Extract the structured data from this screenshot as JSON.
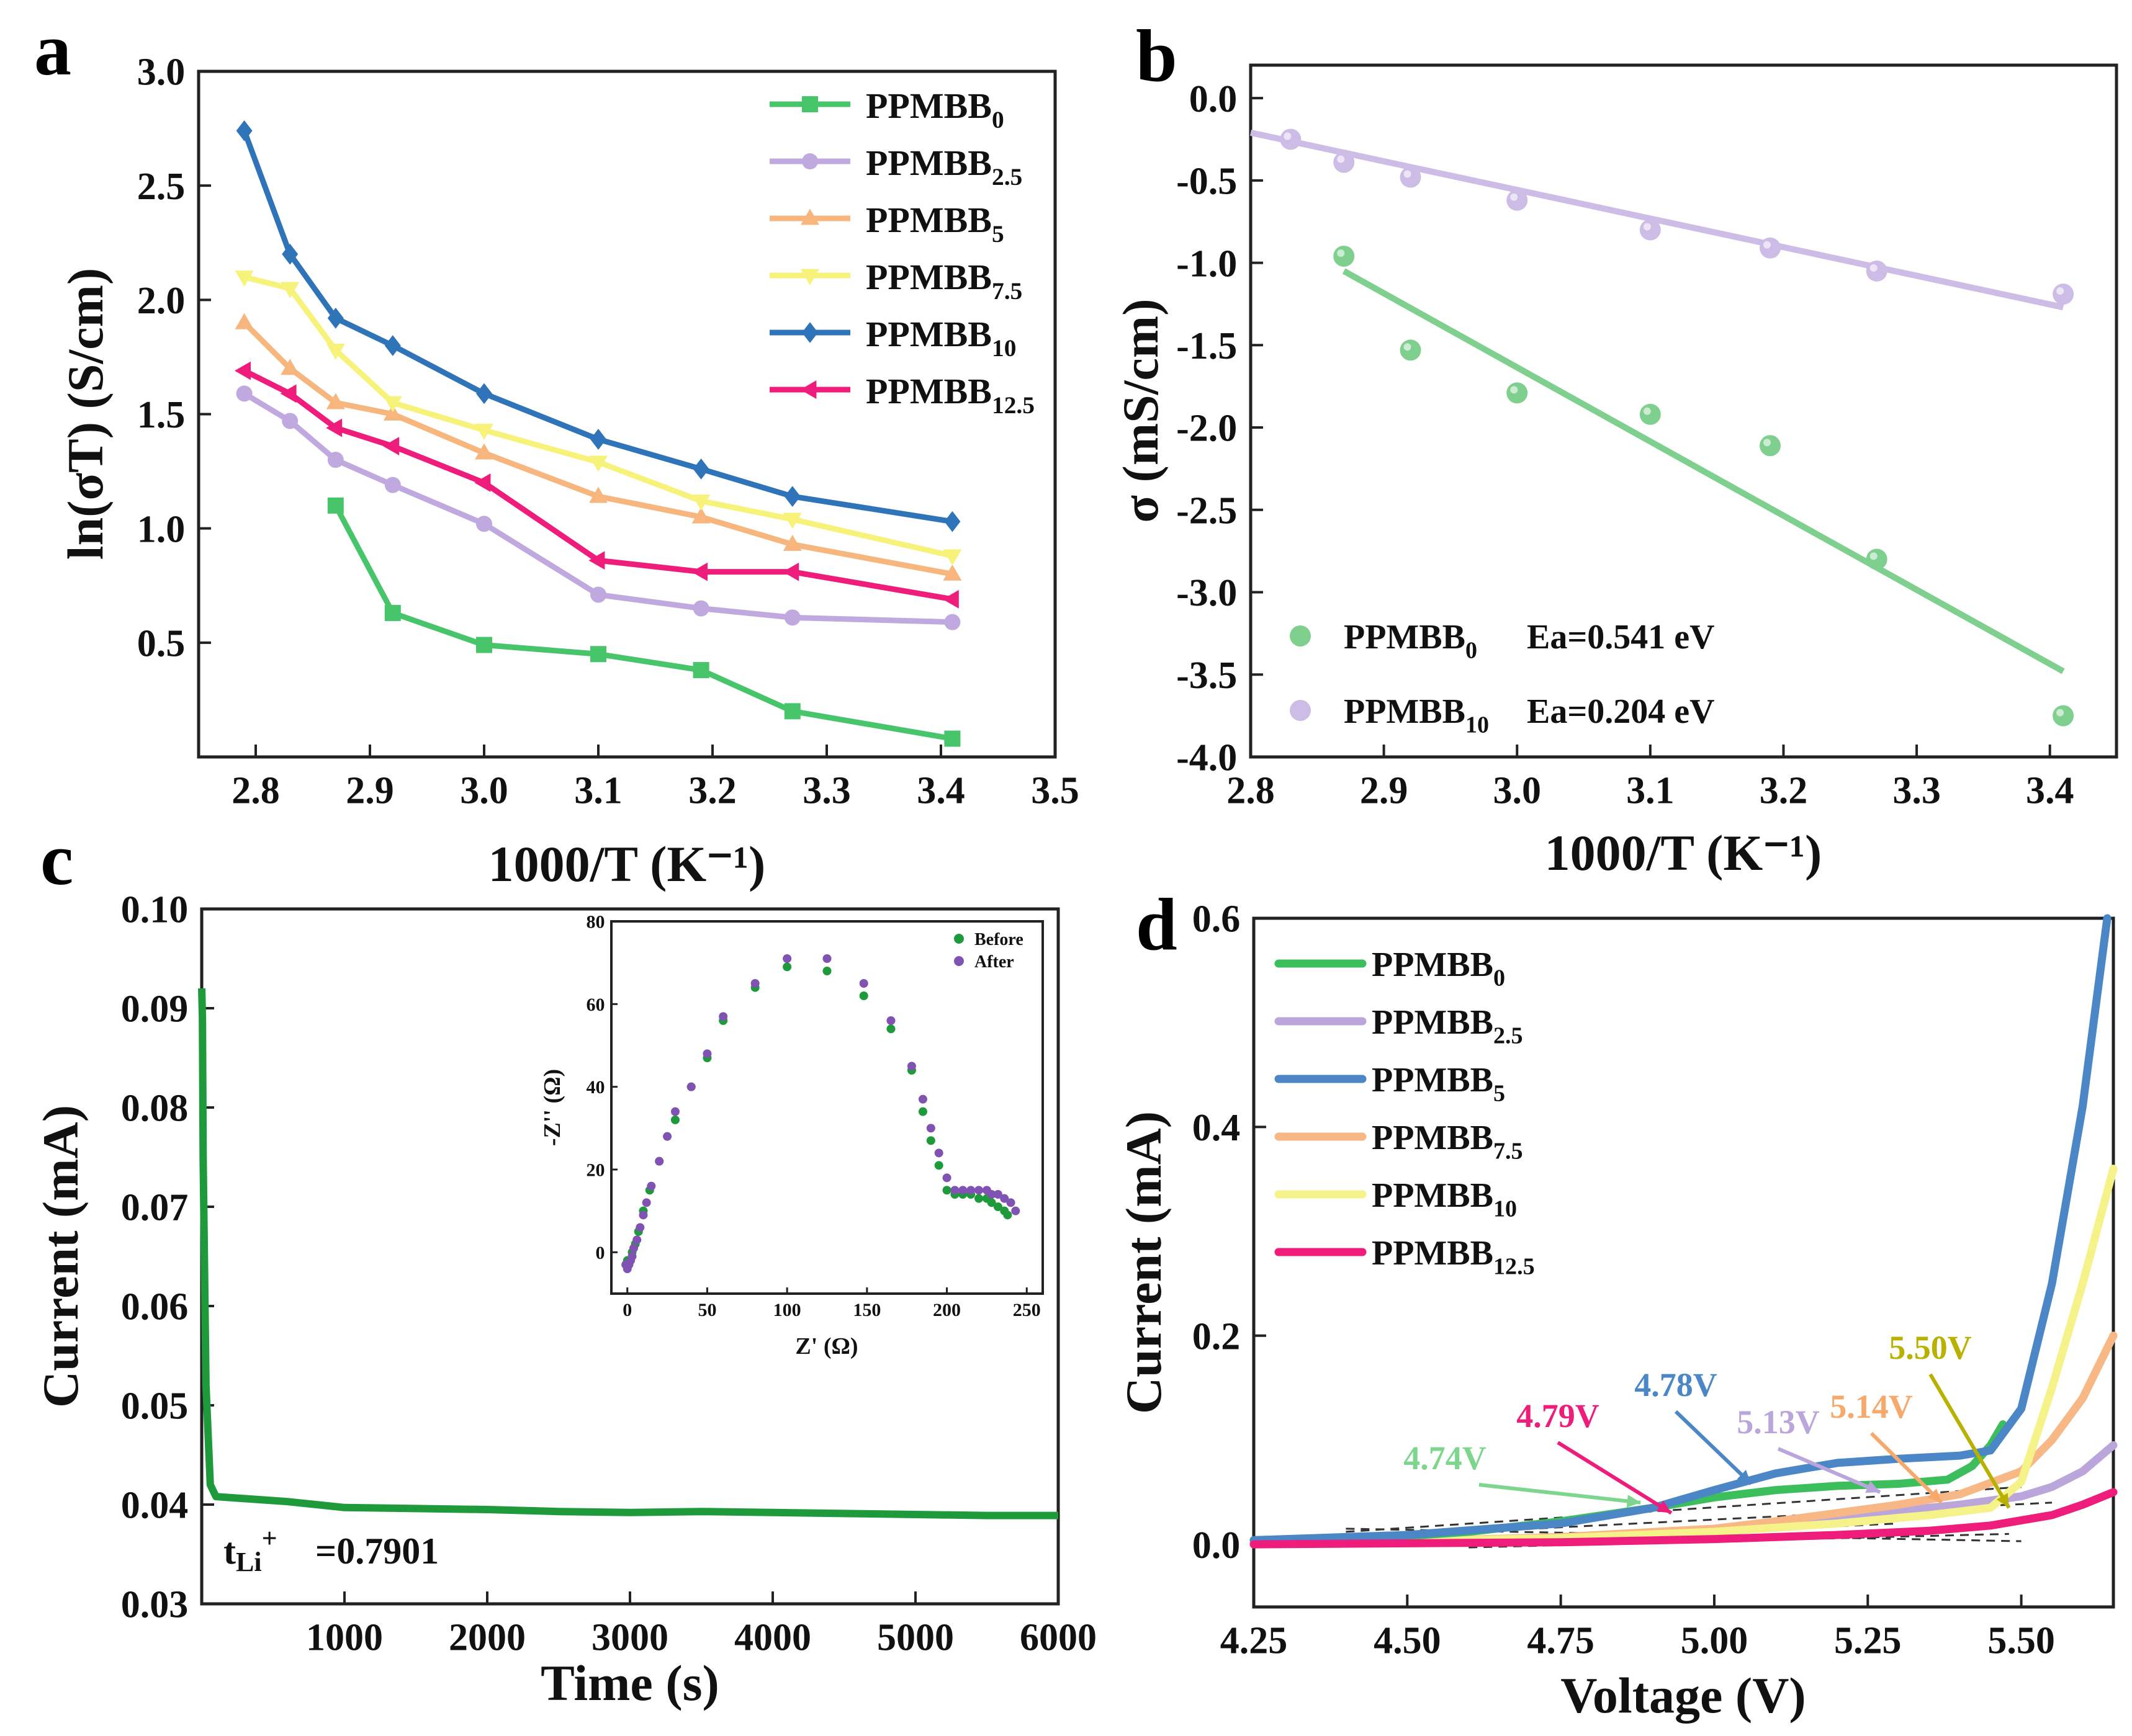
{
  "chart_data": [
    {
      "id": "a",
      "panel_label": "a",
      "type": "line",
      "xlabel": "1000/T (K⁻¹)",
      "ylabel": "ln(σT) (S/cm)",
      "xlim": [
        2.75,
        3.5
      ],
      "ylim": [
        0.0,
        3.0
      ],
      "xticks": [
        2.8,
        2.9,
        3.0,
        3.1,
        3.2,
        3.3,
        3.4,
        3.5
      ],
      "yticks": [
        0.5,
        1.0,
        1.5,
        2.0,
        2.5,
        3.0
      ],
      "legend": "top-right",
      "series": [
        {
          "name": "PPMBB",
          "sub": "0",
          "color": "#48C46A",
          "marker": "square",
          "x": [
            2.87,
            2.92,
            3.0,
            3.1,
            3.19,
            3.27,
            3.41
          ],
          "y": [
            1.1,
            0.63,
            0.49,
            0.45,
            0.38,
            0.2,
            0.08
          ]
        },
        {
          "name": "PPMBB",
          "sub": "2.5",
          "color": "#BFA9DE",
          "marker": "circle",
          "x": [
            2.79,
            2.83,
            2.87,
            2.92,
            3.0,
            3.1,
            3.19,
            3.27,
            3.41
          ],
          "y": [
            1.59,
            1.47,
            1.3,
            1.19,
            1.02,
            0.71,
            0.65,
            0.61,
            0.59
          ]
        },
        {
          "name": "PPMBB",
          "sub": "5",
          "color": "#F6B67D",
          "marker": "triangle-up",
          "x": [
            2.79,
            2.83,
            2.87,
            2.92,
            3.0,
            3.1,
            3.19,
            3.27,
            3.41
          ],
          "y": [
            1.9,
            1.7,
            1.55,
            1.5,
            1.33,
            1.14,
            1.05,
            0.93,
            0.8
          ]
        },
        {
          "name": "PPMBB",
          "sub": "7.5",
          "color": "#F7F27A",
          "marker": "triangle-down",
          "x": [
            2.79,
            2.83,
            2.87,
            2.92,
            3.0,
            3.1,
            3.19,
            3.27,
            3.41
          ],
          "y": [
            2.1,
            2.05,
            1.78,
            1.55,
            1.43,
            1.29,
            1.12,
            1.04,
            0.88
          ]
        },
        {
          "name": "PPMBB",
          "sub": "10",
          "color": "#2F73B8",
          "marker": "diamond",
          "x": [
            2.79,
            2.83,
            2.87,
            2.92,
            3.0,
            3.1,
            3.19,
            3.27,
            3.41
          ],
          "y": [
            2.74,
            2.2,
            1.92,
            1.8,
            1.59,
            1.39,
            1.26,
            1.14,
            1.03
          ]
        },
        {
          "name": "PPMBB",
          "sub": "12.5",
          "color": "#EE1C7A",
          "marker": "triangle-left",
          "x": [
            2.79,
            2.83,
            2.87,
            2.92,
            3.0,
            3.1,
            3.19,
            3.27,
            3.41
          ],
          "y": [
            1.69,
            1.59,
            1.44,
            1.36,
            1.2,
            0.86,
            0.81,
            0.81,
            0.69
          ]
        }
      ]
    },
    {
      "id": "b",
      "panel_label": "b",
      "type": "scatter",
      "xlabel": "1000/T (K⁻¹)",
      "ylabel": "σ (mS/cm)",
      "xlim": [
        2.8,
        3.45
      ],
      "ylim": [
        -4.0,
        0.2
      ],
      "xticks": [
        2.8,
        2.9,
        3.0,
        3.1,
        3.2,
        3.3,
        3.4
      ],
      "yticks": [
        0.0,
        -0.5,
        -1.0,
        -1.5,
        -2.0,
        -2.5,
        -3.0,
        -3.5,
        -4.0
      ],
      "ytick_labels": [
        "0.0",
        "-0.5",
        "-1.0",
        "-1.5",
        "-2.0",
        "-2.5",
        "-3.0",
        "-3.5",
        "-4.0"
      ],
      "legend": "bottom-left",
      "series": [
        {
          "name": "PPMBB",
          "sub": "0",
          "note": "Ea=0.541 eV",
          "color": "#7FD08F",
          "x": [
            2.87,
            2.92,
            3.0,
            3.1,
            3.19,
            3.27,
            3.41
          ],
          "y": [
            -0.96,
            -1.53,
            -1.79,
            -1.92,
            -2.11,
            -2.8,
            -3.75
          ],
          "fit": [
            [
              2.87,
              -1.05
            ],
            [
              3.41,
              -3.48
            ]
          ]
        },
        {
          "name": "PPMBB",
          "sub": "10",
          "note": "Ea=0.204 eV",
          "color": "#CDBDE6",
          "x": [
            2.83,
            2.87,
            2.92,
            3.0,
            3.1,
            3.19,
            3.27,
            3.41
          ],
          "y": [
            -0.25,
            -0.39,
            -0.48,
            -0.62,
            -0.8,
            -0.91,
            -1.05,
            -1.19
          ],
          "fit": [
            [
              2.8,
              -0.21
            ],
            [
              3.41,
              -1.27
            ]
          ]
        }
      ]
    },
    {
      "id": "c",
      "panel_label": "c",
      "type": "line",
      "xlabel": "Time (s)",
      "ylabel": "Current (mA)",
      "xlim": [
        0,
        6000
      ],
      "ylim": [
        0.03,
        0.1
      ],
      "xticks": [
        1000,
        2000,
        3000,
        4000,
        5000,
        6000
      ],
      "yticks": [
        0.03,
        0.04,
        0.05,
        0.06,
        0.07,
        0.08,
        0.09,
        0.1
      ],
      "ytick_labels": [
        "0.03",
        "0.04",
        "0.05",
        "0.06",
        "0.07",
        "0.08",
        "0.09",
        "0.10"
      ],
      "annotation": "=0.7901",
      "series": [
        {
          "name": "current",
          "color": "#1E9A3A",
          "x": [
            0,
            5,
            10,
            30,
            60,
            100,
            300,
            600,
            1000,
            1500,
            2000,
            2500,
            3000,
            3500,
            4000,
            4500,
            5000,
            5500,
            6000
          ],
          "y": [
            0.092,
            0.089,
            0.075,
            0.052,
            0.042,
            0.0408,
            0.0406,
            0.0403,
            0.0397,
            0.0396,
            0.0395,
            0.0393,
            0.0392,
            0.0393,
            0.0392,
            0.0391,
            0.039,
            0.0389,
            0.0389
          ]
        }
      ]
    },
    {
      "id": "c-inset",
      "type": "scatter",
      "xlabel": "Z' (Ω)",
      "ylabel": "-Z'' (Ω)",
      "xlim": [
        -10,
        260
      ],
      "ylim": [
        -10,
        80
      ],
      "xticks": [
        0,
        50,
        100,
        150,
        200,
        250
      ],
      "yticks": [
        0,
        20,
        40,
        60,
        80
      ],
      "legend": "top-right",
      "series": [
        {
          "name": "Before",
          "color": "#1F9A3A",
          "x": [
            0,
            1,
            2,
            3,
            5,
            7,
            10,
            14,
            20,
            30,
            40,
            50,
            60,
            80,
            100,
            125,
            148,
            165,
            178,
            185,
            190,
            195,
            200,
            205,
            210,
            215,
            220,
            225,
            228,
            232,
            236,
            238
          ],
          "y": [
            -2,
            -3,
            -2,
            0,
            2,
            5,
            10,
            15,
            22,
            32,
            40,
            47,
            56,
            64,
            69,
            68,
            62,
            54,
            44,
            34,
            27,
            21,
            15,
            14,
            14,
            14,
            13,
            13,
            12,
            11,
            10,
            9
          ]
        },
        {
          "name": "After",
          "color": "#8052B2",
          "x": [
            -1,
            0,
            1,
            2,
            3,
            4,
            6,
            8,
            10,
            12,
            15,
            20,
            25,
            30,
            40,
            50,
            60,
            80,
            100,
            125,
            148,
            165,
            178,
            185,
            190,
            195,
            200,
            205,
            210,
            215,
            220,
            225,
            228,
            232,
            236,
            240,
            243
          ],
          "y": [
            -3,
            -4,
            -3,
            -2,
            -1,
            1,
            3,
            6,
            9,
            12,
            16,
            22,
            28,
            34,
            40,
            48,
            57,
            65,
            71,
            71,
            65,
            56,
            45,
            37,
            30,
            24,
            18,
            15,
            15,
            15,
            15,
            15,
            14,
            14,
            13,
            12,
            10
          ]
        }
      ]
    },
    {
      "id": "d",
      "panel_label": "d",
      "type": "line",
      "xlabel": "Voltage (V)",
      "ylabel": "Current (mA)",
      "xlim": [
        4.25,
        5.65
      ],
      "ylim": [
        -0.06,
        0.6
      ],
      "xticks": [
        4.25,
        4.5,
        4.75,
        5.0,
        5.25,
        5.5
      ],
      "yticks": [
        0.0,
        0.2,
        0.4,
        0.6
      ],
      "ytick_labels": [
        "0.0",
        "0.2",
        "0.4",
        "0.6"
      ],
      "legend": "top-left",
      "series": [
        {
          "name": "PPMBB",
          "sub": "0",
          "color": "#3DBE5C",
          "onset": "4.74V",
          "x": [
            4.25,
            4.5,
            4.6,
            4.75,
            4.9,
            5.0,
            5.1,
            5.2,
            5.3,
            5.38,
            5.42,
            5.45,
            5.47
          ],
          "y": [
            0.004,
            0.008,
            0.012,
            0.022,
            0.035,
            0.045,
            0.052,
            0.056,
            0.058,
            0.062,
            0.075,
            0.095,
            0.115
          ]
        },
        {
          "name": "PPMBB",
          "sub": "2.5",
          "color": "#BBA6DC",
          "onset": "5.13V",
          "x": [
            4.25,
            4.5,
            4.75,
            5.0,
            5.1,
            5.2,
            5.3,
            5.4,
            5.5,
            5.55,
            5.6,
            5.65
          ],
          "y": [
            0.001,
            0.003,
            0.006,
            0.012,
            0.018,
            0.025,
            0.032,
            0.038,
            0.046,
            0.055,
            0.07,
            0.095
          ]
        },
        {
          "name": "PPMBB",
          "sub": "5",
          "color": "#4B86C6",
          "onset": "4.78V",
          "x": [
            4.25,
            4.5,
            4.75,
            4.9,
            5.0,
            5.1,
            5.2,
            5.3,
            5.4,
            5.45,
            5.5,
            5.55,
            5.6,
            5.64
          ],
          "y": [
            0.004,
            0.009,
            0.02,
            0.035,
            0.052,
            0.068,
            0.078,
            0.082,
            0.085,
            0.09,
            0.13,
            0.25,
            0.42,
            0.6
          ]
        },
        {
          "name": "PPMBB",
          "sub": "7.5",
          "color": "#F7B886",
          "onset": "5.14V",
          "x": [
            4.25,
            4.5,
            4.75,
            5.0,
            5.1,
            5.2,
            5.3,
            5.4,
            5.5,
            5.55,
            5.6,
            5.65
          ],
          "y": [
            0.001,
            0.003,
            0.007,
            0.015,
            0.022,
            0.03,
            0.038,
            0.048,
            0.07,
            0.1,
            0.14,
            0.2
          ]
        },
        {
          "name": "PPMBB",
          "sub": "10",
          "color": "#F6F28A",
          "onset": "5.50V",
          "x": [
            4.25,
            4.5,
            4.75,
            5.0,
            5.2,
            5.35,
            5.45,
            5.5,
            5.55,
            5.6,
            5.65
          ],
          "y": [
            0.001,
            0.003,
            0.006,
            0.012,
            0.02,
            0.028,
            0.035,
            0.06,
            0.15,
            0.25,
            0.36
          ]
        },
        {
          "name": "PPMBB",
          "sub": "12.5",
          "color": "#EE1C7A",
          "onset": "4.79V",
          "x": [
            4.25,
            4.5,
            4.75,
            5.0,
            5.2,
            5.35,
            5.45,
            5.55,
            5.6,
            5.65
          ],
          "y": [
            0.0,
            0.001,
            0.002,
            0.005,
            0.009,
            0.013,
            0.018,
            0.028,
            0.038,
            0.05
          ]
        }
      ],
      "annotations": [
        {
          "text": "4.74V",
          "color": "#7ED68E",
          "target": [
            4.88,
            0.04
          ]
        },
        {
          "text": "4.79V",
          "color": "#EE1C7A",
          "target": [
            4.93,
            0.03
          ]
        },
        {
          "text": "4.78V",
          "color": "#4B86C6",
          "target": [
            5.06,
            0.058
          ]
        },
        {
          "text": "5.13V",
          "color": "#BBA6DC",
          "target": [
            5.27,
            0.05
          ]
        },
        {
          "text": "5.14V",
          "color": "#F6A96A",
          "target": [
            5.37,
            0.04
          ]
        },
        {
          "text": "5.50V",
          "color": "#B9B100",
          "target": [
            5.48,
            0.035
          ]
        }
      ]
    }
  ]
}
